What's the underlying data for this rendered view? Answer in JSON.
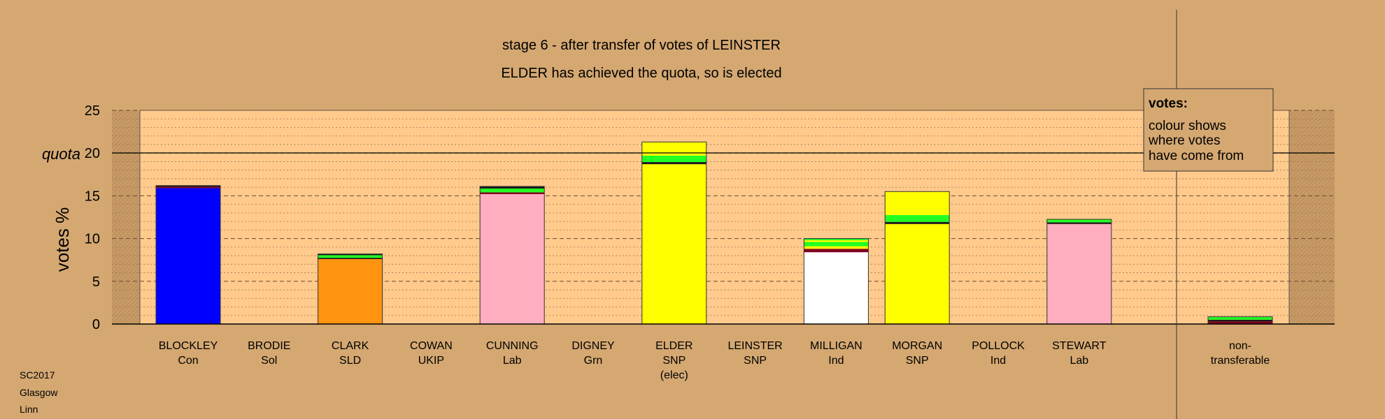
{
  "chart_data": {
    "type": "bar",
    "subtype": "stacked",
    "title": "stage 6 - after transfer of votes of LEINSTER",
    "subtitle": "ELDER has achieved the quota, so is elected",
    "ylabel": "votes %",
    "xlabel": "",
    "ylim": [
      0,
      25
    ],
    "yticks": [
      0,
      5,
      10,
      15,
      20,
      25
    ],
    "quota": {
      "label": "quota",
      "value": 20
    },
    "grid": true,
    "colors": {
      "background": "#d5a872",
      "plot_area": "#ffca8c",
      "con": "#0000ff",
      "sld": "#ff9410",
      "lab": "#ffaec0",
      "snp": "#ffff00",
      "ind": "#ffffff",
      "grn": "#22ff22",
      "maroon": "#800020",
      "dark": "#1a1a1a"
    },
    "candidates": [
      {
        "name": "BLOCKLEY",
        "party": "Con",
        "note": "",
        "segments": [
          {
            "value": 15.9,
            "color": "#0000ff"
          },
          {
            "value": 0.15,
            "color": "#800020"
          },
          {
            "value": 0.15,
            "color": "#1a1a1a"
          }
        ]
      },
      {
        "name": "BRODIE",
        "party": "Sol",
        "note": "",
        "segments": []
      },
      {
        "name": "CLARK",
        "party": "SLD",
        "note": "",
        "segments": [
          {
            "value": 7.6,
            "color": "#ff9410"
          },
          {
            "value": 0.15,
            "color": "#1a1a1a"
          },
          {
            "value": 0.3,
            "color": "#22ff22"
          },
          {
            "value": 0.15,
            "color": "#1a1a1a"
          }
        ]
      },
      {
        "name": "COWAN",
        "party": "UKIP",
        "note": "",
        "segments": []
      },
      {
        "name": "CUNNING",
        "party": "Lab",
        "note": "",
        "segments": [
          {
            "value": 15.2,
            "color": "#ffaec0"
          },
          {
            "value": 0.2,
            "color": "#800020"
          },
          {
            "value": 0.45,
            "color": "#22ff22"
          },
          {
            "value": 0.25,
            "color": "#1a1a1a"
          }
        ]
      },
      {
        "name": "DIGNEY",
        "party": "Grn",
        "note": "",
        "segments": []
      },
      {
        "name": "ELDER",
        "party": "SNP",
        "note": "(elec)",
        "segments": [
          {
            "value": 18.7,
            "color": "#ffff00"
          },
          {
            "value": 0.25,
            "color": "#1a1a1a"
          },
          {
            "value": 0.75,
            "color": "#22ff22"
          },
          {
            "value": 1.6,
            "color": "#ffff00"
          }
        ]
      },
      {
        "name": "LEINSTER",
        "party": "SNP",
        "note": "",
        "segments": []
      },
      {
        "name": "MILLIGAN",
        "party": "Ind",
        "note": "",
        "segments": [
          {
            "value": 8.4,
            "color": "#ffffff"
          },
          {
            "value": 0.4,
            "color": "#800020"
          },
          {
            "value": 0.3,
            "color": "#ffff00"
          },
          {
            "value": 0.5,
            "color": "#22ff22"
          },
          {
            "value": 0.2,
            "color": "#ffff00"
          },
          {
            "value": 0.2,
            "color": "#22ff22"
          }
        ]
      },
      {
        "name": "MORGAN",
        "party": "SNP",
        "note": "",
        "segments": [
          {
            "value": 11.7,
            "color": "#ffff00"
          },
          {
            "value": 0.25,
            "color": "#1a1a1a"
          },
          {
            "value": 0.8,
            "color": "#22ff22"
          },
          {
            "value": 2.75,
            "color": "#ffff00"
          }
        ]
      },
      {
        "name": "POLLOCK",
        "party": "Ind",
        "note": "",
        "segments": []
      },
      {
        "name": "STEWART",
        "party": "Lab",
        "note": "",
        "segments": [
          {
            "value": 11.7,
            "color": "#ffaec0"
          },
          {
            "value": 0.2,
            "color": "#1a1a1a"
          },
          {
            "value": 0.35,
            "color": "#22ff22"
          }
        ]
      }
    ],
    "nontransferable": {
      "label_line1": "non-",
      "label_line2": "transferable",
      "segments": [
        {
          "value": 0.3,
          "color": "#800020"
        },
        {
          "value": 0.2,
          "color": "#1a1a1a"
        },
        {
          "value": 0.35,
          "color": "#22ff22"
        }
      ]
    },
    "legend": {
      "title": "votes:",
      "lines": [
        "colour shows",
        "where votes",
        "have come from"
      ],
      "position": "top-right"
    },
    "footer": [
      "SC2017",
      "Glasgow",
      "Linn"
    ]
  }
}
